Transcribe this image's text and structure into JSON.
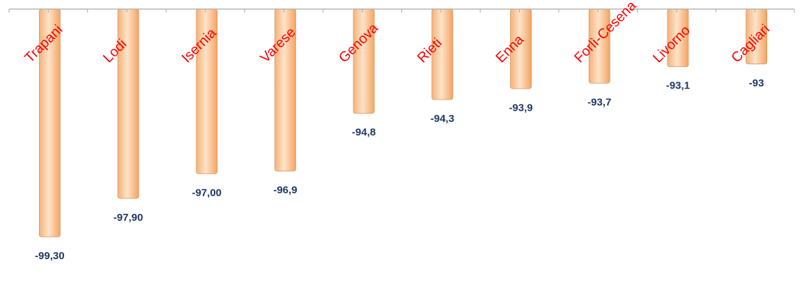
{
  "chart_data": {
    "type": "bar",
    "categories": [
      "Trapani",
      "Lodi",
      "Isernia",
      "Varese",
      "Genova",
      "Rieti",
      "Enna",
      "Forlì-Cesena",
      "Livorno",
      "Cagliari"
    ],
    "values": [
      -99.3,
      -97.9,
      -97.0,
      -96.9,
      -94.8,
      -94.3,
      -93.9,
      -93.7,
      -93.1,
      -93.0
    ],
    "data_labels": [
      "-99,30",
      "-97,90",
      "-97,00",
      "-96,9",
      "-94,8",
      "-94,3",
      "-93,9",
      "-93,7",
      "-93,1",
      "-93"
    ],
    "title": "",
    "xlabel": "",
    "ylabel": "",
    "ylim": [
      -100,
      -91
    ],
    "grid": false,
    "legend": "none",
    "colors": {
      "bar_fill_light": "#fdd9b5",
      "bar_fill_dark": "#f6a96c",
      "bar_stroke": "#d9945a",
      "category_label": "#ff0000",
      "value_label": "#1f3864",
      "axis": "#a6a6a6"
    }
  }
}
